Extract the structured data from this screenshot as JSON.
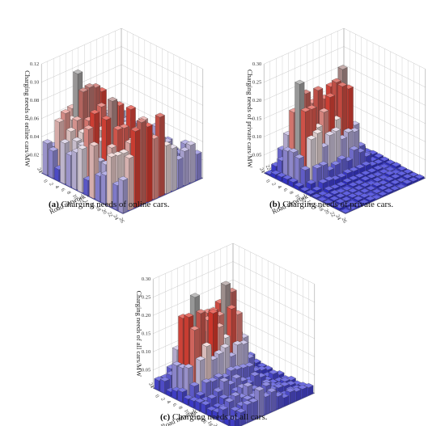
{
  "colors": {
    "low": "#2a2ad8",
    "mid": "#f0e4e4",
    "high": "#e23b2e",
    "top": "#a8a8a8",
    "grid": "#c8c8c8",
    "floor": "#1818c0"
  },
  "panels": [
    {
      "caption": {
        "label": "(a)",
        "text": " Charging needs of online cars."
      },
      "chart_data": {
        "type": "bar3d",
        "title": "",
        "zlabel": "Charging needs of online cars/MW",
        "xlabel": "Road network node",
        "ylabel": "Time/h",
        "zlim": [
          0,
          0.12
        ],
        "zticks": [
          "0.02",
          "0.04",
          "0.06",
          "0.08",
          "0.10",
          "0.12"
        ],
        "nodes": [
          "0",
          "2",
          "4",
          "6",
          "8",
          "10",
          "12",
          "14",
          "16",
          "18",
          "20",
          "22",
          "24",
          "26"
        ],
        "hours": [
          "0",
          "2",
          "4",
          "6",
          "8",
          "10",
          "12",
          "14",
          "16",
          "18",
          "20",
          "22",
          "24"
        ],
        "hour_values": [
          0,
          2,
          4,
          6,
          8,
          10,
          12,
          14,
          16,
          18,
          20,
          22,
          24
        ],
        "node_values": [
          0,
          2,
          4,
          6,
          8,
          10,
          12,
          14,
          16,
          18,
          20,
          22,
          24,
          26
        ],
        "pattern": "online",
        "peak": 0.118
      }
    },
    {
      "caption": {
        "label": "(b)",
        "text": " Charging needs of private cars."
      },
      "chart_data": {
        "type": "bar3d",
        "title": "",
        "zlabel": "Charging needs of private cars/MW",
        "xlabel": "Road network node",
        "ylabel": "Time/h",
        "zlim": [
          0,
          0.3
        ],
        "zticks": [
          "0.05",
          "0.10",
          "0.15",
          "0.20",
          "0.25",
          "0.30"
        ],
        "nodes": [
          "0",
          "2",
          "4",
          "6",
          "8",
          "10",
          "12",
          "14",
          "16",
          "18",
          "20",
          "22",
          "24",
          "26"
        ],
        "hours": [
          "0",
          "2",
          "4",
          "6",
          "8",
          "10",
          "12",
          "14",
          "16",
          "18",
          "20",
          "22",
          "24"
        ],
        "hour_values": [
          0,
          2,
          4,
          6,
          8,
          10,
          12,
          14,
          16,
          18,
          20,
          22,
          24
        ],
        "node_values": [
          0,
          2,
          4,
          6,
          8,
          10,
          12,
          14,
          16,
          18,
          20,
          22,
          24,
          26
        ],
        "pattern": "private",
        "peak": 0.29
      }
    },
    {
      "caption": {
        "label": "(c)",
        "text": " Charging needs of all cars."
      },
      "chart_data": {
        "type": "bar3d",
        "title": "",
        "zlabel": "Charging needs of all cars/MW",
        "xlabel": "Road network node",
        "ylabel": "Time/h",
        "zlim": [
          0,
          0.3
        ],
        "zticks": [
          "0.05",
          "0.10",
          "0.15",
          "0.20",
          "0.25",
          "0.30"
        ],
        "nodes": [
          "0",
          "2",
          "4",
          "6",
          "8",
          "10",
          "12",
          "14",
          "16",
          "18",
          "20",
          "22",
          "24",
          "26"
        ],
        "hours": [
          "0",
          "2",
          "4",
          "6",
          "8",
          "10",
          "12",
          "14",
          "16",
          "18",
          "20",
          "22",
          "24"
        ],
        "hour_values": [
          0,
          2,
          4,
          6,
          8,
          10,
          12,
          14,
          16,
          18,
          20,
          22,
          24
        ],
        "node_values": [
          0,
          2,
          4,
          6,
          8,
          10,
          12,
          14,
          16,
          18,
          20,
          22,
          24,
          26
        ],
        "pattern": "all",
        "peak": 0.29
      }
    }
  ]
}
